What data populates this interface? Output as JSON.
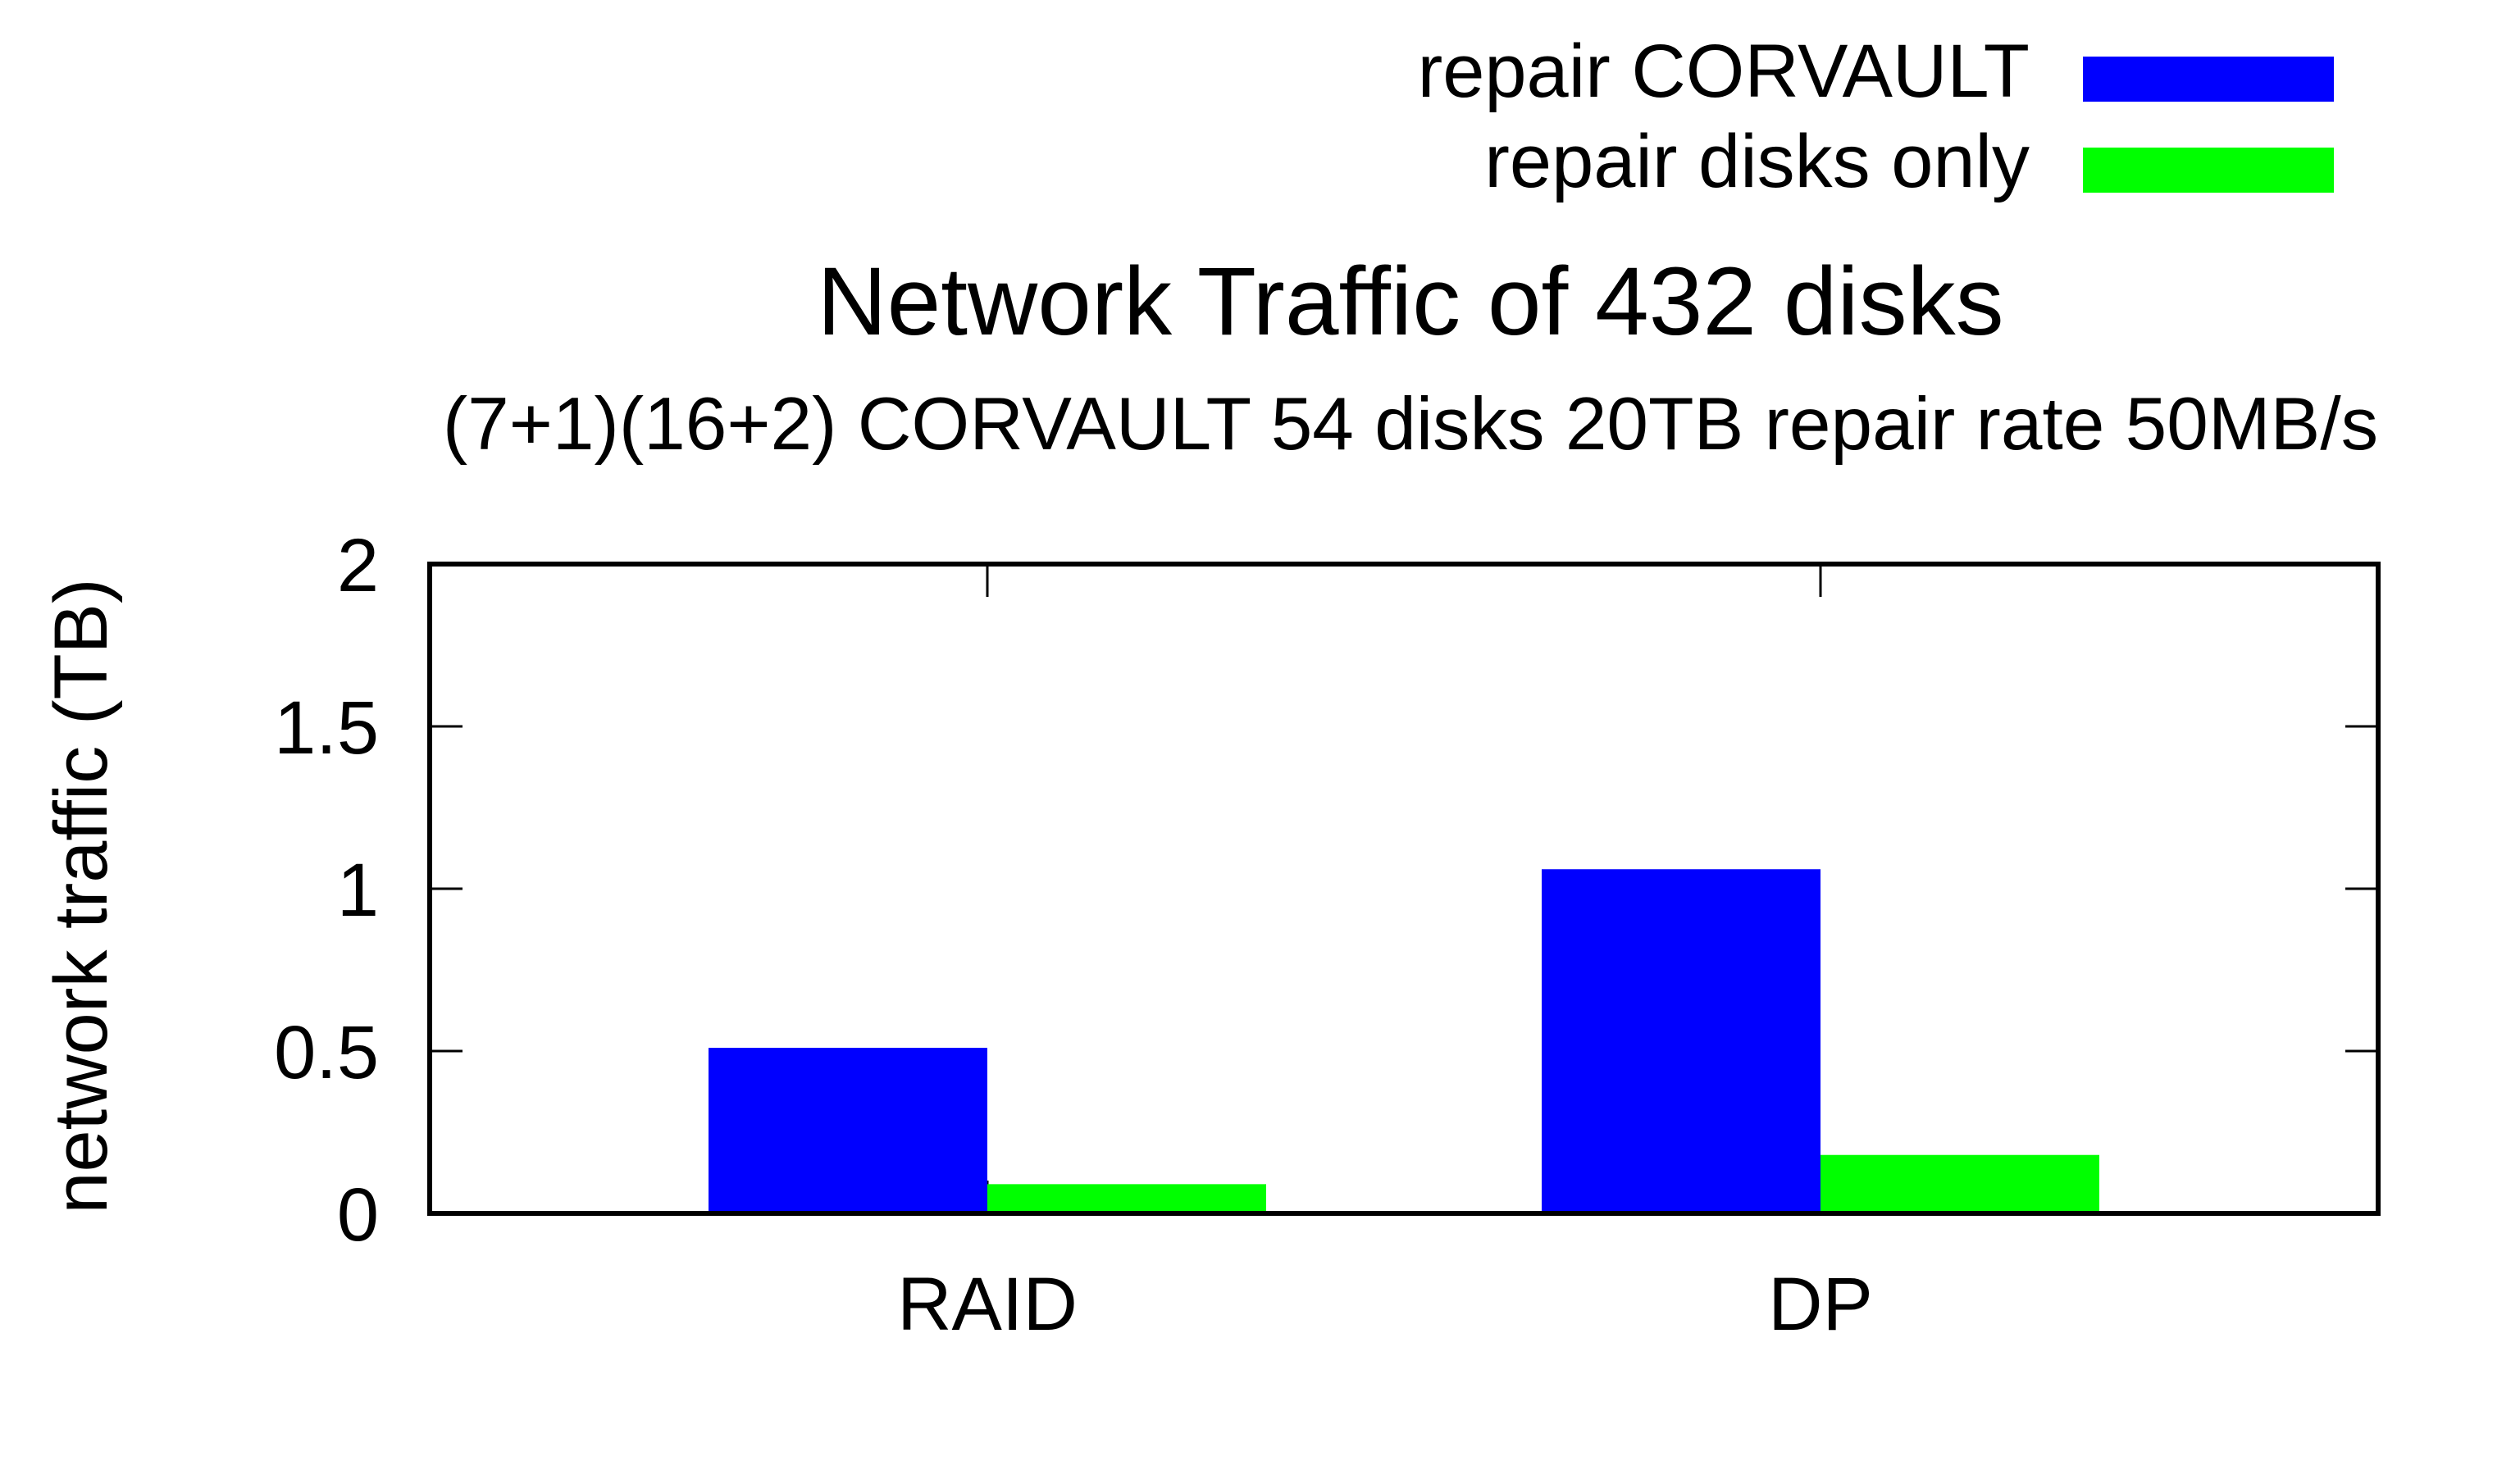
{
  "chart_data": {
    "type": "bar",
    "title": "Network Traffic of 432 disks",
    "subtitle": "(7+1)(16+2) CORVAULT 54 disks 20TB repair rate 50MB/s",
    "xlabel": "",
    "ylabel": "network traffic (TB)",
    "categories": [
      "RAID",
      "DP"
    ],
    "series": [
      {
        "name": "repair CORVAULT",
        "color": "#0000ff",
        "values": [
          0.51,
          1.06
        ]
      },
      {
        "name": "repair disks only",
        "color": "#00ff00",
        "values": [
          0.09,
          0.18
        ]
      }
    ],
    "ylim": [
      0,
      2
    ],
    "yticks": [
      0,
      0.5,
      1,
      1.5,
      2
    ],
    "ytick_labels": [
      "0",
      "0.5",
      "1",
      "1.5",
      "2"
    ],
    "grid": false,
    "legend_position": "top-right"
  }
}
